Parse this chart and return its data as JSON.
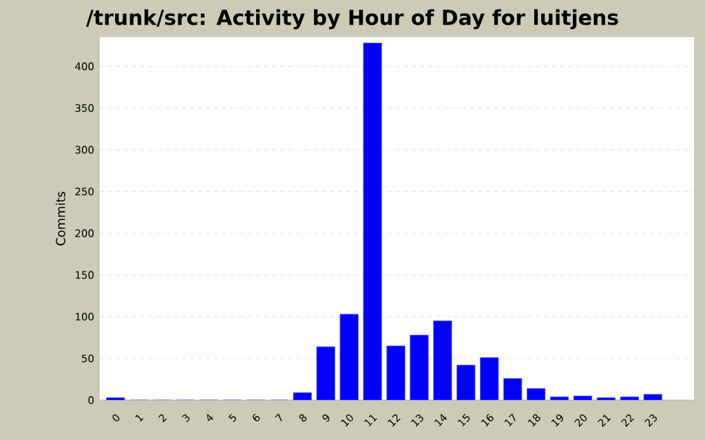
{
  "chart_data": {
    "type": "bar",
    "title": "/trunk/src: Activity by Hour of Day for luitjens",
    "ylabel": "Commits",
    "categories": [
      "0",
      "1",
      "2",
      "3",
      "4",
      "5",
      "6",
      "7",
      "8",
      "9",
      "10",
      "11",
      "12",
      "13",
      "14",
      "15",
      "16",
      "17",
      "18",
      "19",
      "20",
      "21",
      "22",
      "23"
    ],
    "values": [
      3,
      0,
      0,
      0,
      0,
      0,
      0,
      0,
      9,
      64,
      103,
      428,
      65,
      78,
      95,
      42,
      51,
      26,
      14,
      4,
      5,
      3,
      4,
      7
    ],
    "color": "#0000ff",
    "ylim": [
      0,
      435
    ],
    "yticks": [
      0,
      50,
      100,
      150,
      200,
      250,
      300,
      350,
      400
    ],
    "grid": "y"
  }
}
